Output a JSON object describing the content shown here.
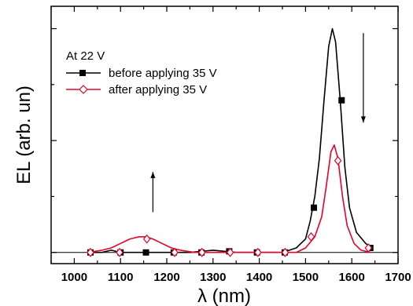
{
  "chart_data": {
    "type": "line",
    "xlabel": "λ (nm)",
    "ylabel": "EL (arb. un)",
    "xlim": [
      950,
      1700
    ],
    "xticks": [
      1000,
      1100,
      1200,
      1300,
      1400,
      1500,
      1600,
      1700
    ],
    "y_tick_labels_shown": false,
    "ylim": [
      -0.05,
      1.1
    ],
    "legend": {
      "title": "At 22 V",
      "placement": "top-left",
      "entries": [
        "before applying 35 V",
        "after applying 35 V"
      ]
    },
    "annotations": [
      {
        "type": "arrow",
        "direction": "up",
        "x": 1170,
        "y_from": 0.18,
        "y_to": 0.36
      },
      {
        "type": "arrow",
        "direction": "down",
        "x": 1625,
        "y_from": 0.98,
        "y_to": 0.58
      }
    ],
    "series": [
      {
        "name": "before applying 35 V",
        "color": "#000000",
        "marker": "filled-square",
        "x": [
          1030,
          1060,
          1080,
          1100,
          1130,
          1160,
          1200,
          1250,
          1300,
          1350,
          1400,
          1450,
          1480,
          1500,
          1510,
          1520,
          1530,
          1540,
          1550,
          1558,
          1565,
          1575,
          1585,
          1595,
          1610,
          1630,
          1645
        ],
        "y": [
          0.0,
          0.0,
          0.01,
          0.0,
          0.0,
          0.0,
          0.0,
          0.0,
          0.01,
          0.0,
          0.0,
          0.0,
          0.02,
          0.06,
          0.14,
          0.25,
          0.42,
          0.68,
          0.92,
          1.0,
          0.94,
          0.68,
          0.38,
          0.2,
          0.09,
          0.04,
          0.02
        ],
        "marker_x": [
          1035,
          1100,
          1155,
          1215,
          1275,
          1335,
          1395,
          1455,
          1518,
          1578,
          1640
        ],
        "marker_y": [
          0.0,
          0.0,
          0.0,
          0.0,
          0.0,
          0.005,
          0.0,
          0.0,
          0.2,
          0.68,
          0.02
        ]
      },
      {
        "name": "after applying 35 V",
        "color": "#e8002a",
        "marker": "open-diamond",
        "x": [
          1030,
          1060,
          1080,
          1100,
          1120,
          1140,
          1155,
          1170,
          1190,
          1210,
          1230,
          1260,
          1300,
          1350,
          1400,
          1450,
          1480,
          1500,
          1520,
          1535,
          1545,
          1555,
          1562,
          1570,
          1580,
          1590,
          1605,
          1620,
          1640
        ],
        "y": [
          0.0,
          0.01,
          0.02,
          0.04,
          0.06,
          0.07,
          0.07,
          0.06,
          0.04,
          0.02,
          0.01,
          0.0,
          0.0,
          0.0,
          0.0,
          0.0,
          0.0,
          0.02,
          0.07,
          0.16,
          0.3,
          0.45,
          0.48,
          0.42,
          0.25,
          0.12,
          0.04,
          0.01,
          0.0
        ],
        "marker_x": [
          1035,
          1098,
          1157,
          1217,
          1276,
          1337,
          1397,
          1456,
          1512,
          1570,
          1636
        ],
        "marker_y": [
          0.0,
          0.0,
          0.06,
          0.0,
          0.0,
          0.0,
          0.0,
          0.0,
          0.07,
          0.41,
          0.02
        ]
      }
    ]
  }
}
